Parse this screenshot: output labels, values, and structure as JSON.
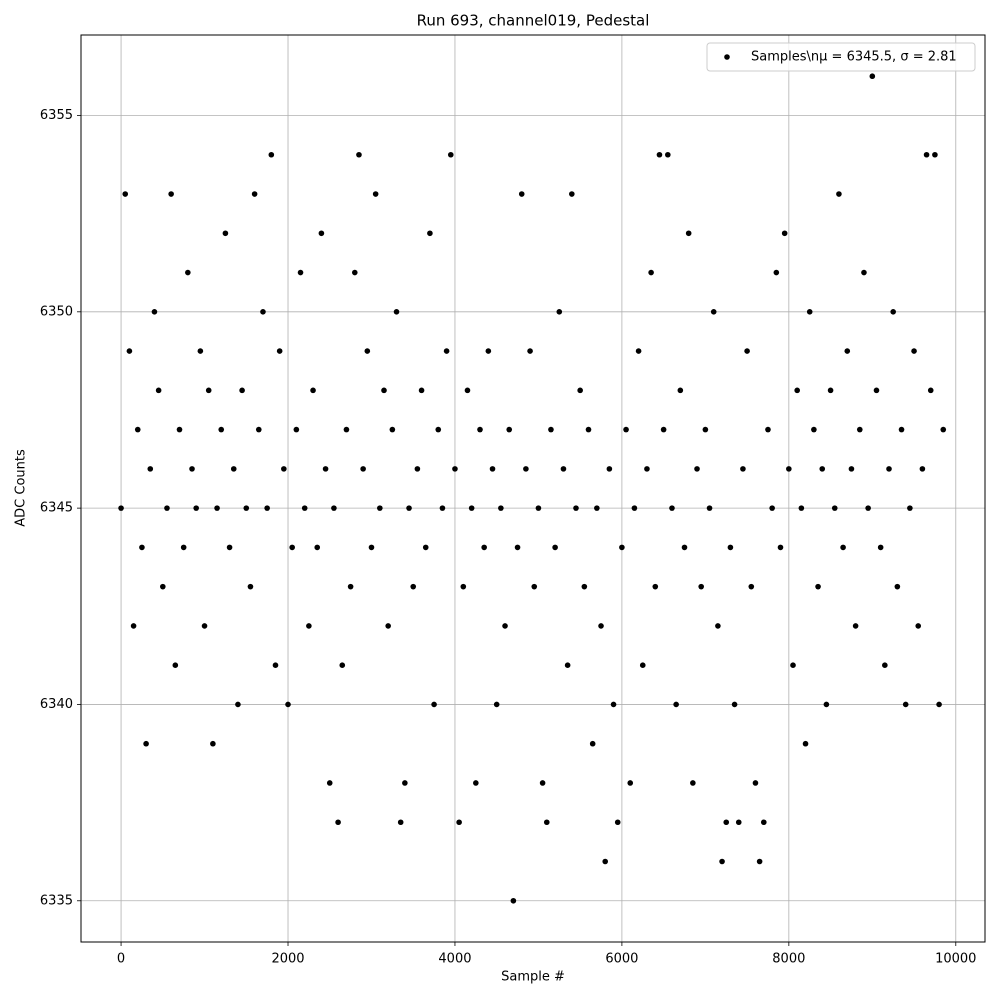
{
  "chart_data": {
    "type": "scatter",
    "title": "Run 693, channel019, Pedestal",
    "xlabel": "Sample #",
    "ylabel": "ADC Counts",
    "x": [
      0,
      50,
      100,
      150,
      200,
      250,
      300,
      350,
      400,
      450,
      500,
      550,
      600,
      650,
      700,
      750,
      800,
      850,
      900,
      950,
      1000,
      1050,
      1100,
      1150,
      1200,
      1250,
      1300,
      1350,
      1400,
      1450,
      1500,
      1550,
      1600,
      1650,
      1700,
      1750,
      1800,
      1850,
      1900,
      1950,
      2000,
      2050,
      2100,
      2150,
      2200,
      2250,
      2300,
      2350,
      2400,
      2450,
      2500,
      2550,
      2600,
      2650,
      2700,
      2750,
      2800,
      2850,
      2900,
      2950,
      3000,
      3050,
      3100,
      3150,
      3200,
      3250,
      3300,
      3350,
      3400,
      3450,
      3500,
      3550,
      3600,
      3650,
      3700,
      3750,
      3800,
      3850,
      3900,
      3950,
      4000,
      4050,
      4100,
      4150,
      4200,
      4250,
      4300,
      4350,
      4400,
      4450,
      4500,
      4550,
      4600,
      4650,
      4700,
      4750,
      4800,
      4850,
      4900,
      4950,
      5000,
      5050,
      5100,
      5150,
      5200,
      5250,
      5300,
      5350,
      5400,
      5450,
      5500,
      5550,
      5600,
      5650,
      5700,
      5750,
      5800,
      5850,
      5900,
      5950,
      6000,
      6050,
      6100,
      6150,
      6200,
      6250,
      6300,
      6350,
      6400,
      6450,
      6500,
      6550,
      6600,
      6650,
      6700,
      6750,
      6800,
      6850,
      6900,
      6950,
      7000,
      7050,
      7100,
      7150,
      7200,
      7250,
      7300,
      7350,
      7400,
      7450,
      7500,
      7550,
      7600,
      7650,
      7700,
      7750,
      7800,
      7850,
      7900,
      7950,
      8000,
      8050,
      8100,
      8150,
      8200,
      8250,
      8300,
      8350,
      8400,
      8450,
      8500,
      8550,
      8600,
      8650,
      8700,
      8750,
      8800,
      8850,
      8900,
      8950,
      9000,
      9050,
      9100,
      9150,
      9200,
      9250,
      9300,
      9350,
      9400,
      9450,
      9500,
      9550,
      9600,
      9650,
      9700,
      9750,
      9800,
      9850
    ],
    "series": [
      {
        "name": "Samples\\nμ = 6345.5, σ = 2.81",
        "color": "#000000",
        "values": [
          6345,
          6353,
          6349,
          6342,
          6347,
          6344,
          6339,
          6346,
          6350,
          6348,
          6343,
          6345,
          6353,
          6341,
          6347,
          6344,
          6351,
          6346,
          6345,
          6349,
          6342,
          6348,
          6339,
          6345,
          6347,
          6352,
          6344,
          6346,
          6340,
          6348,
          6345,
          6343,
          6353,
          6347,
          6350,
          6345,
          6354,
          6341,
          6349,
          6346,
          6340,
          6344,
          6347,
          6351,
          6345,
          6342,
          6348,
          6344,
          6352,
          6346,
          6338,
          6345,
          6337,
          6341,
          6347,
          6343,
          6351,
          6354,
          6346,
          6349,
          6344,
          6353,
          6345,
          6348,
          6342,
          6347,
          6350,
          6337,
          6338,
          6345,
          6343,
          6346,
          6348,
          6344,
          6352,
          6340,
          6347,
          6345,
          6349,
          6354,
          6346,
          6337,
          6343,
          6348,
          6345,
          6338,
          6347,
          6344,
          6349,
          6346,
          6340,
          6345,
          6342,
          6347,
          6335,
          6344,
          6353,
          6346,
          6349,
          6343,
          6345,
          6338,
          6337,
          6347,
          6344,
          6350,
          6346,
          6341,
          6353,
          6345,
          6348,
          6343,
          6347,
          6339,
          6345,
          6342,
          6336,
          6346,
          6340,
          6337,
          6344,
          6347,
          6338,
          6345,
          6349,
          6341,
          6346,
          6351,
          6343,
          6354,
          6347,
          6354,
          6345,
          6340,
          6348,
          6344,
          6352,
          6338,
          6346,
          6343,
          6347,
          6345,
          6350,
          6342,
          6336,
          6337,
          6344,
          6340,
          6337,
          6346,
          6349,
          6343,
          6338,
          6336,
          6337,
          6347,
          6345,
          6351,
          6344,
          6352,
          6346,
          6341,
          6348,
          6345,
          6339,
          6350,
          6347,
          6343,
          6346,
          6340,
          6348,
          6345,
          6353,
          6344,
          6349,
          6346,
          6342,
          6347,
          6351,
          6345,
          6356,
          6348,
          6344,
          6341,
          6346,
          6350,
          6343,
          6347,
          6340,
          6345,
          6349,
          6342,
          6346,
          6354,
          6348,
          6354,
          6340,
          6347
        ]
      }
    ],
    "xlim": [
      -480,
      10350
    ],
    "ylim": [
      6333.95,
      6357.05
    ],
    "xticks": [
      0,
      2000,
      4000,
      6000,
      8000,
      10000
    ],
    "yticks": [
      6335,
      6340,
      6345,
      6350,
      6355
    ],
    "grid": true,
    "legend": "upper right"
  }
}
